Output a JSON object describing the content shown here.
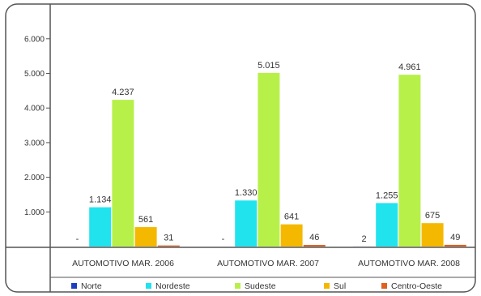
{
  "chart_data": {
    "type": "bar",
    "categories": [
      "AUTOMOTIVO MAR. 2006",
      "AUTOMOTIVO MAR. 2007",
      "AUTOMOTIVO MAR. 2008"
    ],
    "series": [
      {
        "name": "Norte",
        "color": "#1f3fbf",
        "values": [
          0,
          0,
          2
        ],
        "labels": [
          "-",
          "-",
          "2"
        ]
      },
      {
        "name": "Nordeste",
        "color": "#21e3ee",
        "values": [
          1134,
          1330,
          1255
        ],
        "labels": [
          "1.134",
          "1.330",
          "1.255"
        ]
      },
      {
        "name": "Sudeste",
        "color": "#b8f04a",
        "values": [
          4237,
          5015,
          4961
        ],
        "labels": [
          "4.237",
          "5.015",
          "4.961"
        ]
      },
      {
        "name": "Sul",
        "color": "#f5b800",
        "values": [
          561,
          641,
          675
        ],
        "labels": [
          "561",
          "641",
          "675"
        ]
      },
      {
        "name": "Centro-Oeste",
        "color": "#e0601e",
        "values": [
          31,
          46,
          49
        ],
        "labels": [
          "31",
          "46",
          "49"
        ]
      }
    ],
    "yticks": [
      "1.000",
      "2.000",
      "3.000",
      "4.000",
      "5.000",
      "6.000"
    ],
    "ylim": [
      0,
      6000
    ],
    "legend_position": "bottom",
    "grid": false
  }
}
